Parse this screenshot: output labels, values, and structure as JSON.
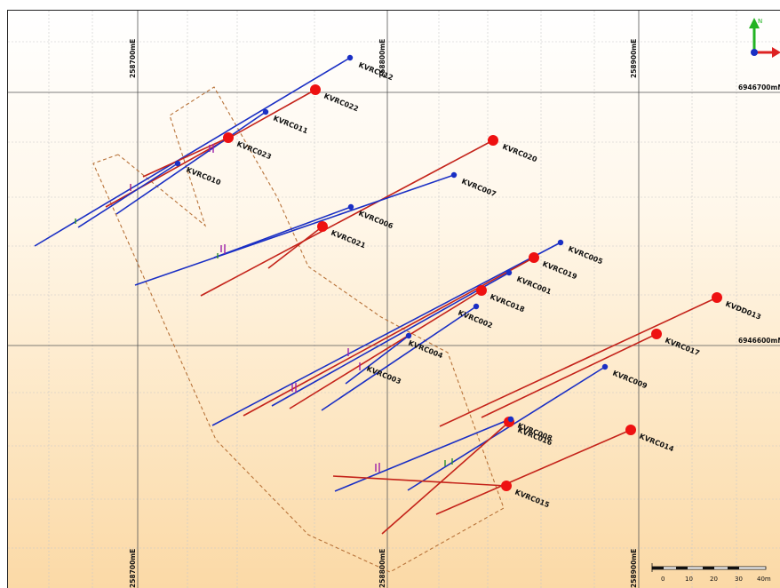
{
  "map": {
    "grid_labels": {
      "eastings_top": [
        "258700mE",
        "258800mE",
        "258900mE"
      ],
      "eastings_bottom": [
        "258700mE",
        "258800mE",
        "258900mE"
      ],
      "northings": [
        "6946700mN",
        "6946600mN"
      ]
    },
    "north_arrow": {
      "label": "N"
    },
    "scale_bar": {
      "ticks": [
        "0",
        "10",
        "20",
        "30",
        "40m"
      ]
    },
    "drillholes": [
      {
        "id": "KVRC012",
        "color": "blue"
      },
      {
        "id": "KVRC022",
        "color": "red"
      },
      {
        "id": "KVRC011",
        "color": "blue"
      },
      {
        "id": "KVRC023",
        "color": "red"
      },
      {
        "id": "KVRC010",
        "color": "blue"
      },
      {
        "id": "KVRC020",
        "color": "red"
      },
      {
        "id": "KVRC007",
        "color": "blue"
      },
      {
        "id": "KVRC006",
        "color": "blue"
      },
      {
        "id": "KVRC021",
        "color": "red"
      },
      {
        "id": "KVRC005",
        "color": "blue"
      },
      {
        "id": "KVRC019",
        "color": "red"
      },
      {
        "id": "KVRC001",
        "color": "blue"
      },
      {
        "id": "KVRC018",
        "color": "red"
      },
      {
        "id": "KVRC002",
        "color": "blue"
      },
      {
        "id": "KVRC004",
        "color": "blue"
      },
      {
        "id": "KVRC003",
        "color": "blue"
      },
      {
        "id": "KVDD013",
        "color": "red"
      },
      {
        "id": "KVRC017",
        "color": "red"
      },
      {
        "id": "KVRC009",
        "color": "blue"
      },
      {
        "id": "KVRC008",
        "color": "blue"
      },
      {
        "id": "KVRC016",
        "color": "red"
      },
      {
        "id": "KVRC014",
        "color": "red"
      },
      {
        "id": "KVRC015",
        "color": "red"
      }
    ],
    "colors": {
      "blue_hole": "#1a2fc4",
      "red_hole": "#c4231a",
      "collar_red": "#ee1111",
      "outline": "#b8733a"
    }
  }
}
